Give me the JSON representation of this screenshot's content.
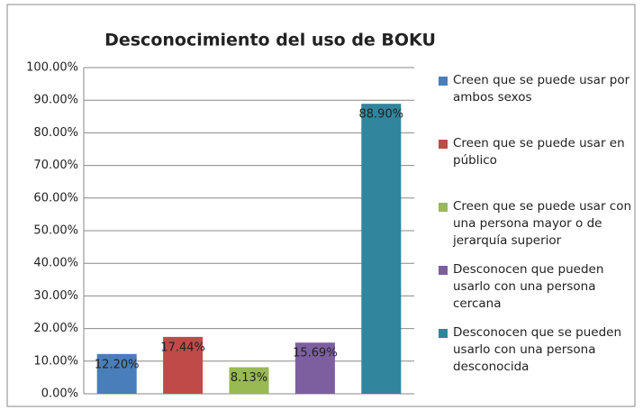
{
  "chart_data": {
    "type": "bar",
    "title": "Desconocimiento del uso de BOKU",
    "categories": [
      "Creen que se puede usar por ambos sexos",
      "Creen que se puede usar en público",
      "Creen que se puede usar con una persona mayor o de jerarquía superior",
      "Desconocen que pueden usarlo con una persona cercana",
      "Desconocen que se pueden usarlo con una persona desconocida"
    ],
    "values": [
      12.2,
      17.44,
      8.13,
      15.69,
      88.9
    ],
    "value_labels": [
      "12.20%",
      "17.44%",
      "8.13%",
      "15.69%",
      "88.90%"
    ],
    "colors": [
      "#4a7ebb",
      "#be4b48",
      "#98b954",
      "#7d5fa0",
      "#31859c"
    ],
    "ylim": [
      0,
      100
    ],
    "yticks": [
      {
        "value": 0,
        "label": "0.00%"
      },
      {
        "value": 10,
        "label": "10.00%"
      },
      {
        "value": 20,
        "label": "20.00%"
      },
      {
        "value": 30,
        "label": "30.00%"
      },
      {
        "value": 40,
        "label": "40.00%"
      },
      {
        "value": 50,
        "label": "50.00%"
      },
      {
        "value": 60,
        "label": "60.00%"
      },
      {
        "value": 70,
        "label": "70.00%"
      },
      {
        "value": 80,
        "label": "80.00%"
      },
      {
        "value": 90,
        "label": "90.00%"
      },
      {
        "value": 100,
        "label": "100.00%"
      }
    ],
    "grid": true,
    "legend": "right"
  }
}
